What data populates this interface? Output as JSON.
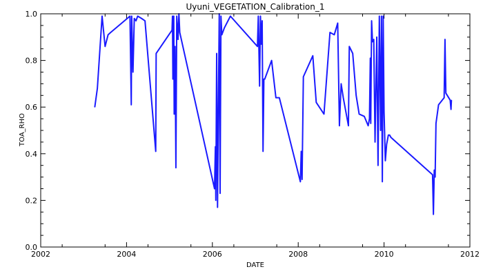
{
  "chart_data": {
    "type": "line",
    "title": "Uyuni_VEGETATION_Calibration_1",
    "xlabel": "DATE",
    "ylabel": "TOA_RHO",
    "xlim": [
      2002,
      2012
    ],
    "ylim": [
      0.0,
      1.0
    ],
    "x_ticks": [
      2002,
      2004,
      2006,
      2008,
      2010,
      2012
    ],
    "x_tick_labels": [
      "2002",
      "2004",
      "2006",
      "2008",
      "2010",
      "2012"
    ],
    "y_ticks": [
      0.0,
      0.2,
      0.4,
      0.6,
      0.8,
      1.0
    ],
    "y_tick_labels": [
      "0.0",
      "0.2",
      "0.4",
      "0.6",
      "0.8",
      "1.0"
    ],
    "grid": false,
    "series": [
      {
        "color": "#1a1aff",
        "x": [
          2003.26,
          2003.32,
          2003.43,
          2003.5,
          2003.57,
          2003.63,
          2004.08,
          2004.11,
          2004.12,
          2004.15,
          2004.18,
          2004.22,
          2004.26,
          2004.35,
          2004.43,
          2004.68,
          2004.69,
          2005.06,
          2005.07,
          2005.08,
          2005.1,
          2005.11,
          2005.13,
          2005.15,
          2005.17,
          2005.2,
          2005.22,
          2005.24,
          2006.05,
          2006.07,
          2006.08,
          2006.1,
          2006.12,
          2006.14,
          2006.16,
          2006.18,
          2006.2,
          2006.22,
          2006.24,
          2006.28,
          2006.42,
          2007.05,
          2007.07,
          2007.1,
          2007.12,
          2007.14,
          2007.16,
          2007.18,
          2007.2,
          2007.22,
          2007.38,
          2007.48,
          2007.56,
          2008.05,
          2008.07,
          2008.09,
          2008.12,
          2008.34,
          2008.42,
          2008.6,
          2008.74,
          2008.84,
          2008.92,
          2008.96,
          2009.0,
          2009.05,
          2009.17,
          2009.19,
          2009.27,
          2009.35,
          2009.42,
          2009.54,
          2009.63,
          2009.66,
          2009.68,
          2009.69,
          2009.71,
          2009.73,
          2009.76,
          2009.79,
          2009.83,
          2009.86,
          2009.89,
          2009.92,
          2009.94,
          2009.96,
          2009.98,
          2010.0,
          2010.03,
          2010.06,
          2010.1,
          2010.13,
          2010.16,
          2011.13,
          2011.15,
          2011.17,
          2011.19,
          2011.21,
          2011.27,
          2011.4,
          2011.42,
          2011.44,
          2011.54,
          2011.56,
          2011.57
        ],
        "y": [
          0.6,
          0.68,
          0.99,
          0.86,
          0.91,
          0.92,
          0.99,
          0.61,
          0.99,
          0.75,
          0.98,
          0.97,
          0.99,
          0.98,
          0.97,
          0.41,
          0.83,
          0.93,
          0.99,
          0.72,
          0.99,
          0.57,
          0.86,
          0.34,
          0.99,
          0.89,
          1.0,
          0.92,
          0.25,
          0.43,
          0.2,
          0.83,
          0.17,
          0.6,
          1.0,
          0.23,
          0.99,
          0.91,
          0.92,
          0.94,
          0.99,
          0.86,
          0.99,
          0.69,
          0.99,
          0.87,
          0.97,
          0.41,
          0.72,
          0.72,
          0.8,
          0.64,
          0.64,
          0.28,
          0.41,
          0.29,
          0.73,
          0.82,
          0.62,
          0.57,
          0.92,
          0.91,
          0.96,
          0.52,
          0.7,
          0.64,
          0.52,
          0.86,
          0.83,
          0.65,
          0.57,
          0.56,
          0.52,
          0.55,
          0.81,
          0.53,
          0.97,
          0.88,
          0.89,
          0.45,
          0.9,
          0.35,
          0.99,
          0.5,
          0.99,
          0.28,
          0.99,
          0.58,
          0.37,
          0.44,
          0.48,
          0.48,
          0.47,
          0.31,
          0.14,
          0.33,
          0.3,
          0.53,
          0.61,
          0.64,
          0.89,
          0.66,
          0.63,
          0.59,
          0.63
        ]
      }
    ]
  }
}
